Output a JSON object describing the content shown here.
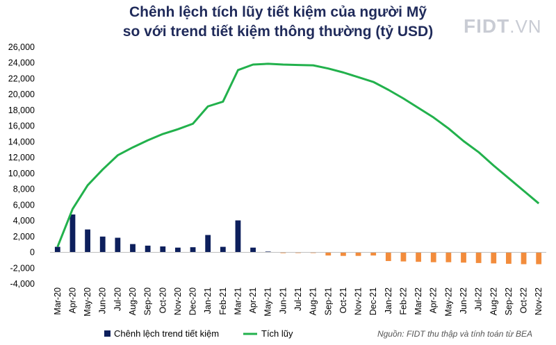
{
  "title_line1": "Chênh lệch tích lũy tiết kiệm của người Mỹ",
  "title_line2": "so với trend tiết kiệm thông thường (tỷ USD)",
  "logo": {
    "brand": "FIDT",
    "tld": ".VN"
  },
  "source": "Nguồn: FIDT thu thập và tính toán từ BEA",
  "colors": {
    "bar_positive": "#0d1f5c",
    "bar_negative": "#f28c3c",
    "line": "#22b14c",
    "title": "#1f2a5a",
    "axis": "#bfbfbf"
  },
  "chart_data": {
    "type": "bar+line",
    "title": "Chênh lệch tích lũy tiết kiệm của người Mỹ so với trend tiết kiệm thông thường (tỷ USD)",
    "categories": [
      "Mar-20",
      "Apr-20",
      "May-20",
      "Jun-20",
      "Jul-20",
      "Aug-20",
      "Sep-20",
      "Oct-20",
      "Nov-20",
      "Dec-20",
      "Jan-21",
      "Feb-21",
      "Mar-21",
      "Apr-21",
      "May-21",
      "Jun-21",
      "Jul-21",
      "Aug-21",
      "Sep-21",
      "Oct-21",
      "Nov-21",
      "Dec-21",
      "Jan-22",
      "Feb-22",
      "Mar-22",
      "Apr-22",
      "May-22",
      "Jun-22",
      "Jul-22",
      "Aug-22",
      "Sep-22",
      "Oct-22",
      "Nov-22"
    ],
    "series": [
      {
        "name": "Chênh lệch trend tiết kiệm",
        "kind": "bar",
        "values": [
          700,
          4800,
          2900,
          2000,
          1850,
          1050,
          850,
          750,
          600,
          650,
          2200,
          700,
          4050,
          600,
          100,
          -100,
          -80,
          -60,
          -400,
          -450,
          -450,
          -400,
          -1100,
          -1150,
          -1200,
          -1250,
          -1250,
          -1300,
          -1350,
          -1400,
          -1450,
          -1500,
          -1500
        ]
      },
      {
        "name": "Tích lũy",
        "kind": "line",
        "values": [
          700,
          5500,
          8500,
          10500,
          12300,
          13300,
          14200,
          15000,
          15600,
          16300,
          18500,
          19100,
          23100,
          23800,
          23900,
          23800,
          23750,
          23700,
          23300,
          22800,
          22200,
          21600,
          20600,
          19500,
          18300,
          17100,
          15700,
          14100,
          12700,
          11000,
          9400,
          7800,
          6200
        ]
      }
    ],
    "ylim": [
      -4000,
      26000
    ],
    "yticks": [
      -4000,
      -2000,
      0,
      2000,
      4000,
      6000,
      8000,
      10000,
      12000,
      14000,
      16000,
      18000,
      20000,
      22000,
      24000,
      26000
    ],
    "ytick_labels": [
      "-4,000",
      "-2,000",
      "0",
      "2,000",
      "4,000",
      "6,000",
      "8,000",
      "10,000",
      "12,000",
      "14,000",
      "16,000",
      "18,000",
      "20,000",
      "22,000",
      "24,000",
      "26,000"
    ],
    "legend": [
      "Chênh lệch trend tiết kiệm",
      "Tích lũy"
    ],
    "legend_position": "bottom-left",
    "grid": false,
    "xlabel": "",
    "ylabel": ""
  }
}
